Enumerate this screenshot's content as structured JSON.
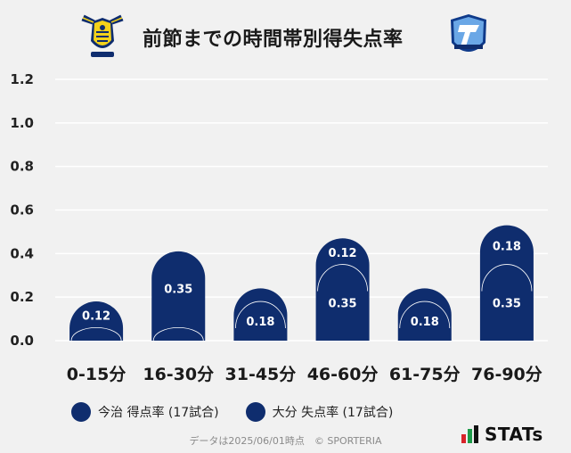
{
  "title": "前節までの時間帯別得失点率",
  "legend": {
    "home_label": "今治 得点率 (17試合)",
    "away_label": "大分 失点率 (17試合)"
  },
  "footer": "データは2025/06/01時点　© SPORTERIA",
  "stats_brand": "STATs",
  "colors": {
    "bar": "#0f2d6e",
    "grid": "#ffffff",
    "background": "#f1f1f1",
    "stats_red": "#d8232a",
    "stats_green": "#1e9b4a"
  },
  "chart_data": {
    "type": "bar",
    "stacked": true,
    "categories": [
      "0-15分",
      "16-30分",
      "31-45分",
      "46-60分",
      "61-75分",
      "76-90分"
    ],
    "series": [
      {
        "name": "大分 失点率 (17試合)",
        "values": [
          0.06,
          0.06,
          0.18,
          0.35,
          0.18,
          0.35
        ],
        "labels": [
          "",
          "",
          "0.18",
          "0.35",
          "0.18",
          "0.35"
        ]
      },
      {
        "name": "今治 得点率 (17試合)",
        "values": [
          0.12,
          0.35,
          0.06,
          0.12,
          0.06,
          0.18
        ],
        "labels": [
          "0.12",
          "0.35",
          "",
          "0.12",
          "",
          "0.18"
        ]
      }
    ],
    "ylim": [
      0,
      1.2
    ],
    "yticks": [
      "0.0",
      "0.2",
      "0.4",
      "0.6",
      "0.8",
      "1.0",
      "1.2"
    ],
    "grid": true
  }
}
